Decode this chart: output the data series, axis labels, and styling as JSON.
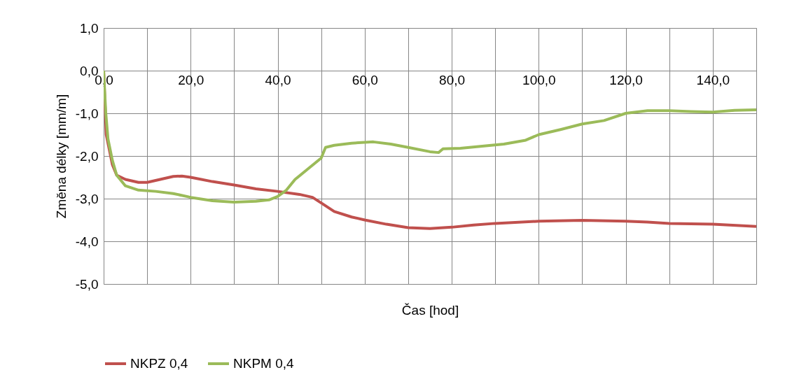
{
  "chart_data": {
    "type": "line",
    "xlabel": "Čas [hod]",
    "ylabel": "Změna délky [mm/m]",
    "xlim": [
      0,
      150
    ],
    "ylim": [
      -5,
      1
    ],
    "xticks": [
      {
        "value": 0,
        "label": "0,0"
      },
      {
        "value": 10,
        "label": null
      },
      {
        "value": 20,
        "label": "20,0"
      },
      {
        "value": 30,
        "label": null
      },
      {
        "value": 40,
        "label": "40,0"
      },
      {
        "value": 50,
        "label": null
      },
      {
        "value": 60,
        "label": "60,0"
      },
      {
        "value": 70,
        "label": null
      },
      {
        "value": 80,
        "label": "80,0"
      },
      {
        "value": 90,
        "label": null
      },
      {
        "value": 100,
        "label": "100,0"
      },
      {
        "value": 110,
        "label": null
      },
      {
        "value": 120,
        "label": "120,0"
      },
      {
        "value": 130,
        "label": null
      },
      {
        "value": 140,
        "label": "140,0"
      }
    ],
    "yticks": [
      {
        "value": -5,
        "label": "-5,0"
      },
      {
        "value": -4,
        "label": "-4,0"
      },
      {
        "value": -3,
        "label": "-3,0"
      },
      {
        "value": -2,
        "label": "-2,0"
      },
      {
        "value": -1,
        "label": "-1,0"
      },
      {
        "value": 0,
        "label": "0,0"
      },
      {
        "value": 1,
        "label": "1,0"
      }
    ],
    "grid": true,
    "legend": "bottom",
    "marker": "none",
    "line_style": "solid",
    "series": [
      {
        "name": "NKPZ 0,4",
        "color": "#c0504d",
        "x": [
          0,
          0.6,
          2,
          3,
          5,
          8,
          10,
          13,
          16,
          18,
          20,
          25,
          30,
          35,
          40,
          45,
          48,
          50,
          53,
          57,
          60,
          65,
          70,
          75,
          80,
          85,
          90,
          100,
          110,
          120,
          125,
          130,
          140,
          150
        ],
        "values": [
          0,
          -1.5,
          -2.2,
          -2.45,
          -2.55,
          -2.62,
          -2.62,
          -2.55,
          -2.48,
          -2.47,
          -2.5,
          -2.6,
          -2.68,
          -2.77,
          -2.83,
          -2.9,
          -2.97,
          -3.1,
          -3.3,
          -3.43,
          -3.5,
          -3.6,
          -3.68,
          -3.7,
          -3.67,
          -3.62,
          -3.58,
          -3.53,
          -3.51,
          -3.53,
          -3.55,
          -3.58,
          -3.6,
          -3.65
        ]
      },
      {
        "name": "NKPM 0,4",
        "color": "#9bbb59",
        "x": [
          0,
          0.5,
          1,
          2,
          3,
          5,
          8,
          12,
          16,
          20,
          25,
          30,
          35,
          38,
          40,
          42,
          44,
          47,
          50,
          51,
          53,
          57,
          62,
          66,
          70,
          75,
          77,
          78,
          82,
          87,
          92,
          97,
          100,
          105,
          110,
          115,
          120,
          125,
          130,
          135,
          140,
          145,
          150
        ],
        "values": [
          0,
          -1.0,
          -1.6,
          -2.1,
          -2.45,
          -2.7,
          -2.8,
          -2.83,
          -2.88,
          -2.97,
          -3.05,
          -3.08,
          -3.06,
          -3.03,
          -2.95,
          -2.8,
          -2.55,
          -2.3,
          -2.05,
          -1.8,
          -1.75,
          -1.7,
          -1.67,
          -1.72,
          -1.8,
          -1.9,
          -1.92,
          -1.83,
          -1.82,
          -1.77,
          -1.72,
          -1.63,
          -1.5,
          -1.38,
          -1.25,
          -1.17,
          -1.0,
          -0.94,
          -0.94,
          -0.96,
          -0.97,
          -0.93,
          -0.92
        ]
      }
    ]
  }
}
